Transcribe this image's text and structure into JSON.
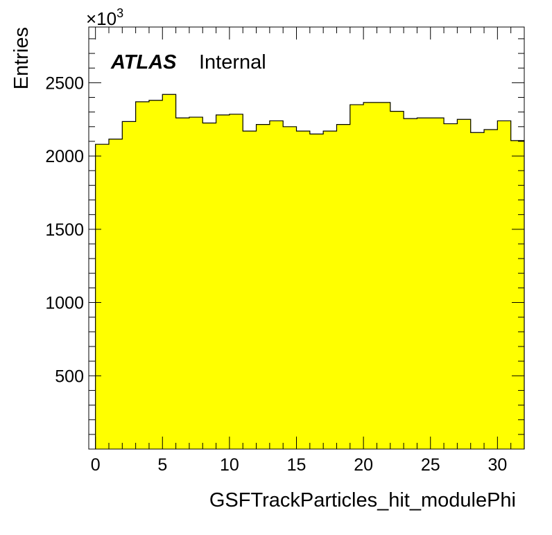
{
  "chart_data": {
    "type": "bar",
    "style": "histogram",
    "xlabel": "GSFTrackParticles_hit_modulePhi",
    "ylabel": "Entries",
    "y_multiplier": "×10",
    "y_multiplier_exponent": "3",
    "xlim": [
      -0.5,
      32.0
    ],
    "ylim": [
      0,
      2880
    ],
    "x_ticks": [
      0,
      5,
      10,
      15,
      20,
      25,
      30
    ],
    "y_ticks": [
      500,
      1000,
      1500,
      2000,
      2500
    ],
    "bin_edges": [
      0,
      1,
      2,
      3,
      4,
      5,
      6,
      7,
      8,
      9,
      10,
      11,
      12,
      13,
      14,
      15,
      16,
      17,
      18,
      19,
      20,
      21,
      22,
      23,
      24,
      25,
      26,
      27,
      28,
      29,
      30,
      31,
      32
    ],
    "values": [
      2080,
      2115,
      2235,
      2370,
      2380,
      2420,
      2260,
      2265,
      2225,
      2280,
      2285,
      2170,
      2215,
      2240,
      2200,
      2170,
      2150,
      2170,
      2215,
      2350,
      2365,
      2365,
      2305,
      2255,
      2260,
      2260,
      2220,
      2250,
      2160,
      2180,
      2240,
      2105
    ],
    "fill_color": "#ffff00",
    "line_color": "#000000",
    "grid": false,
    "legend": "none"
  },
  "label": {
    "experiment": "ATLAS",
    "status": "Internal"
  }
}
